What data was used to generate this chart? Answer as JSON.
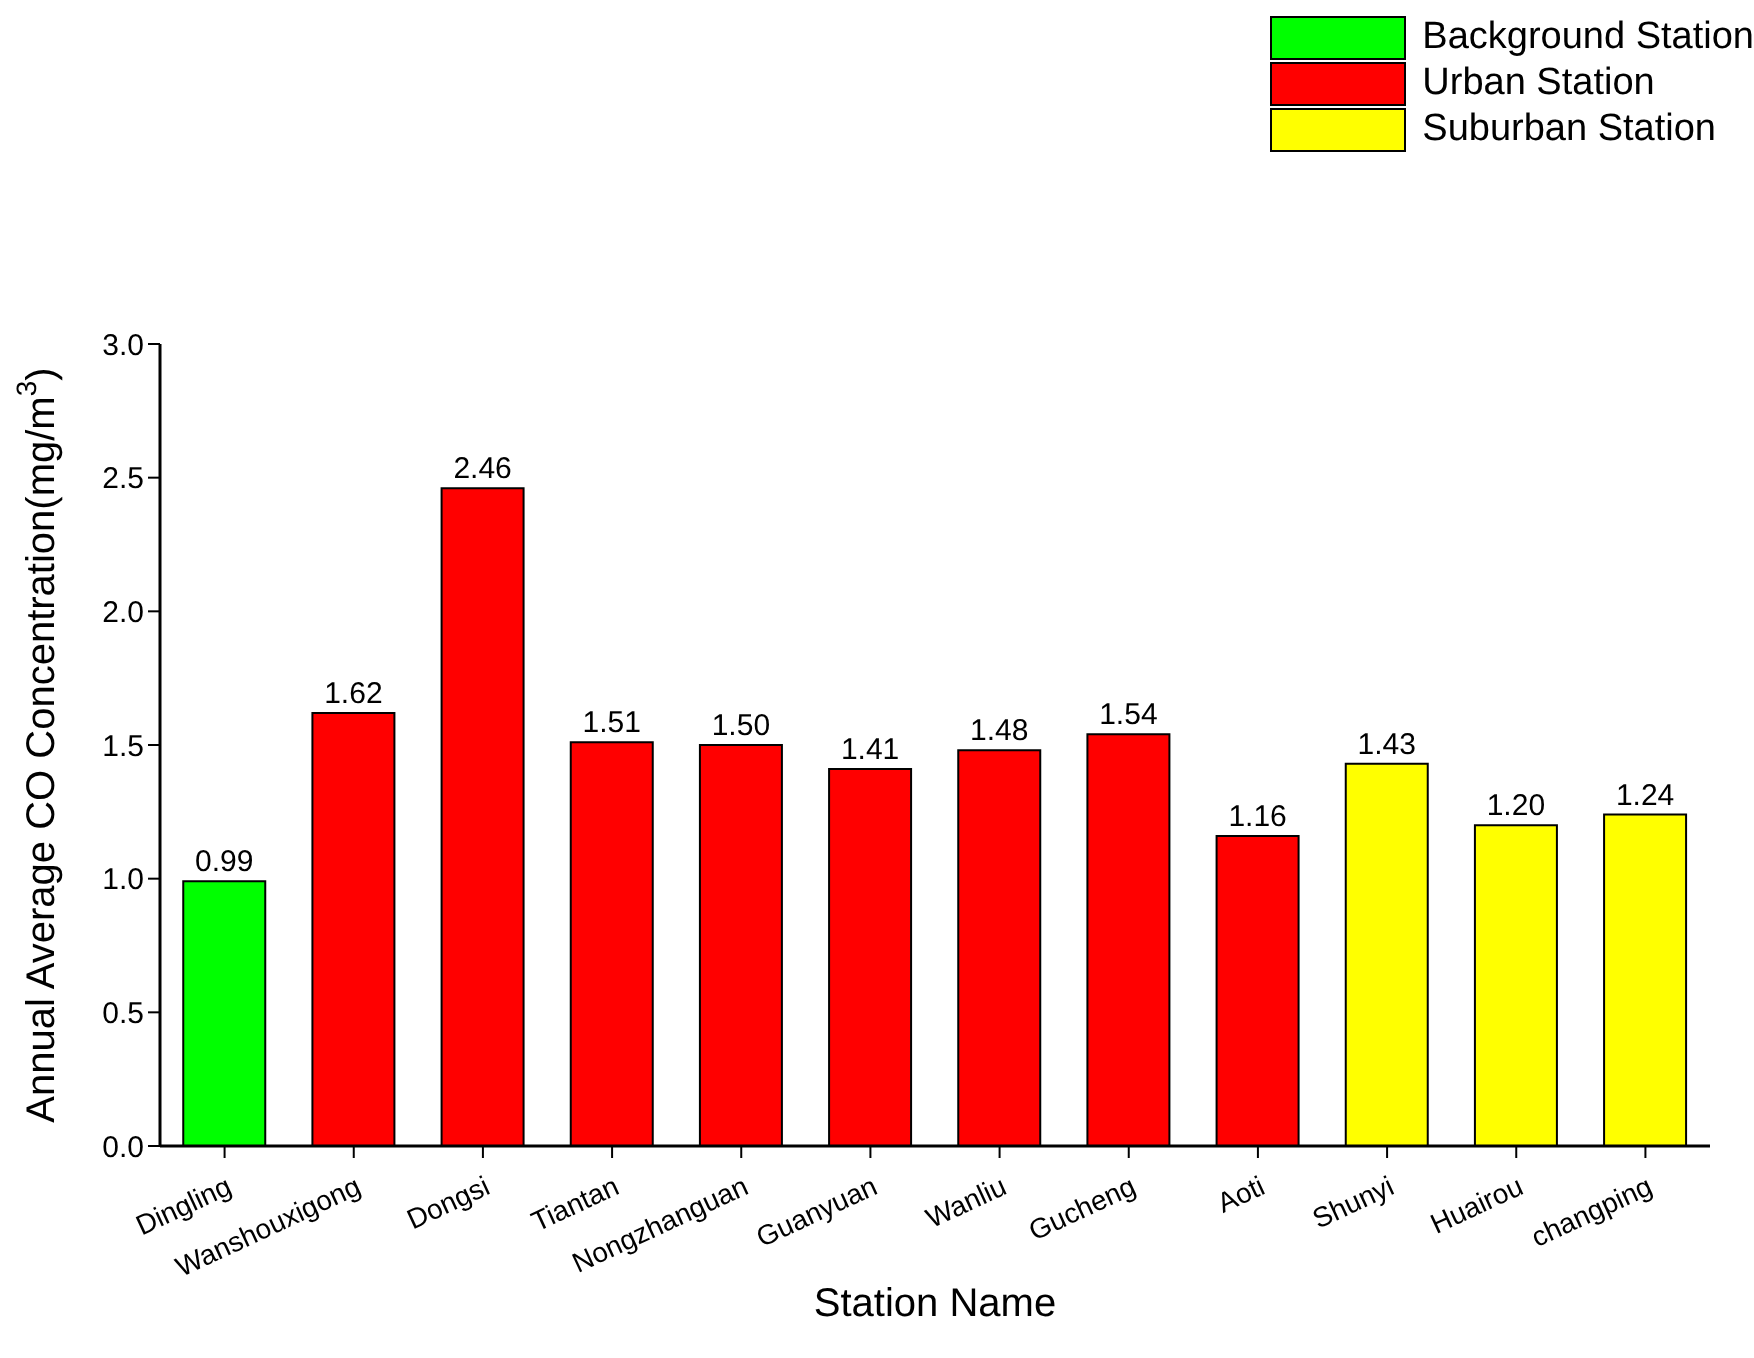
{
  "chart_data": {
    "type": "bar",
    "xlabel": "Station Name",
    "ylabel": "Annual Average CO Concentration(mg/m$^{3}$)",
    "categories": [
      "Dingling",
      "Wanshouxigong",
      "Dongsi",
      "Tiantan",
      "Nongzhanguan",
      "Guanyuan",
      "Wanliu",
      "Gucheng",
      "Aoti",
      "Shunyi",
      "Huairou",
      "changping"
    ],
    "stacked": true,
    "series": [
      {
        "name": "Background Station",
        "color": "#00ff00",
        "values": [
          0.99,
          null,
          null,
          null,
          null,
          null,
          null,
          null,
          null,
          null,
          null,
          null
        ],
        "value_labels": [
          "0.99",
          null,
          null,
          null,
          null,
          null,
          null,
          null,
          null,
          null,
          null,
          null
        ]
      },
      {
        "name": "Urban Station",
        "color": "#ff0000",
        "values": [
          null,
          1.62,
          2.46,
          1.51,
          1.5,
          1.41,
          1.48,
          1.54,
          1.16,
          null,
          null,
          null
        ],
        "value_labels": [
          null,
          "1.62",
          "2.46",
          "1.51",
          "1.50",
          "1.41",
          "1.48",
          "1.54",
          "1.16",
          null,
          null,
          null
        ]
      },
      {
        "name": "Suburban Station",
        "color": "#ffff00",
        "values": [
          null,
          null,
          null,
          null,
          null,
          null,
          null,
          null,
          null,
          1.43,
          1.2,
          1.24
        ],
        "value_labels": [
          null,
          null,
          null,
          null,
          null,
          null,
          null,
          null,
          null,
          "1.43",
          "1.20",
          "1.24"
        ]
      }
    ],
    "ylim": [
      0,
      3
    ],
    "yticks": [
      {
        "value": 0,
        "label": "0.0"
      },
      {
        "value": 0.5,
        "label": "0.5"
      },
      {
        "value": 1,
        "label": "1.0"
      },
      {
        "value": 1.5,
        "label": "1.5"
      },
      {
        "value": 2,
        "label": "2.0"
      },
      {
        "value": 2.5,
        "label": "2.5"
      },
      {
        "value": 3,
        "label": "3.0"
      }
    ],
    "legend": "top right",
    "grid": false
  }
}
